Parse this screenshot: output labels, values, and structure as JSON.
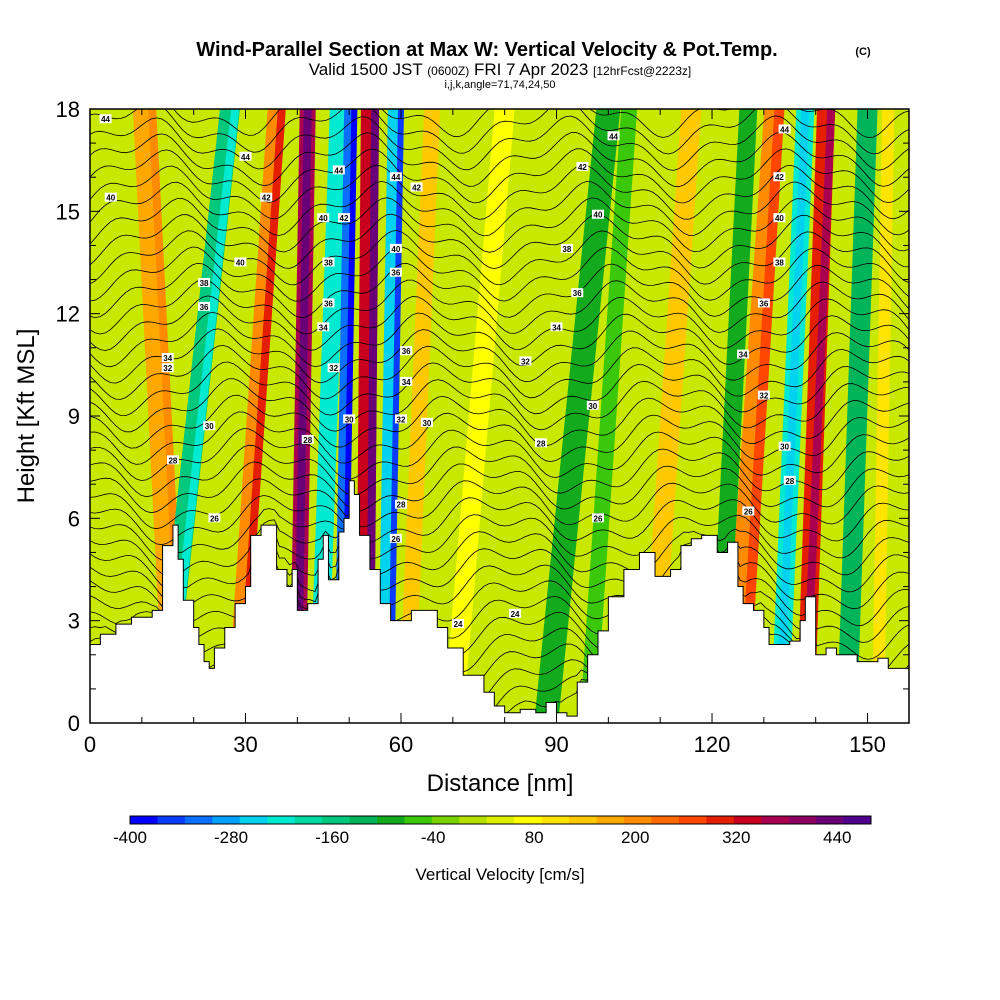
{
  "chart_data": {
    "type": "heatmap",
    "title": "Wind-Parallel Section at Max W: Vertical Velocity & Pot.Temp.",
    "title_mark": "(C)",
    "subtitle_main": "Valid 1500 JST",
    "subtitle_utc": "(0600Z)",
    "subtitle_date": "FRI 7 Apr 2023",
    "subtitle_fcst": "[12hrFcst@2223z]",
    "subtitle_grid": "i,j,k,angle=71,74,24,50",
    "xlabel": "Distance [nm]",
    "ylabel": "Height [Kft MSL]",
    "xlim": [
      0,
      158
    ],
    "ylim": [
      0,
      18
    ],
    "x_ticks": [
      "0",
      "30",
      "60",
      "90",
      "120",
      "150"
    ],
    "x_tick_values": [
      0,
      30,
      60,
      90,
      120,
      150
    ],
    "y_ticks": [
      "0",
      "3",
      "6",
      "9",
      "12",
      "15",
      "18"
    ],
    "y_tick_values": [
      0,
      3,
      6,
      9,
      12,
      15,
      18
    ],
    "colorbar": {
      "label": "Vertical Velocity [cm/s]",
      "tick_labels": [
        "-400",
        "-280",
        "-160",
        "-40",
        "80",
        "200",
        "320",
        "440"
      ],
      "tick_values": [
        -400,
        -280,
        -160,
        -40,
        80,
        200,
        320,
        440
      ],
      "range": [
        -400,
        480
      ],
      "step": 40,
      "colors": [
        "#0000ff",
        "#0a3cff",
        "#0a6eff",
        "#00a0ff",
        "#00d2f0",
        "#00ead2",
        "#00d9a0",
        "#00c87d",
        "#00b45a",
        "#14aa1e",
        "#3cc80a",
        "#78d200",
        "#b4e000",
        "#dcf000",
        "#ffff00",
        "#ffe400",
        "#ffc800",
        "#ffa800",
        "#ff8c00",
        "#ff6a00",
        "#ff4600",
        "#e61e00",
        "#c8001e",
        "#aa0050",
        "#8c0064",
        "#6a0078",
        "#50008c"
      ]
    },
    "contour_labels_kft": [
      "24",
      "26",
      "28",
      "30",
      "32",
      "34",
      "36",
      "38",
      "40",
      "42",
      "44"
    ],
    "terrain_max_kft": 7.1
  }
}
